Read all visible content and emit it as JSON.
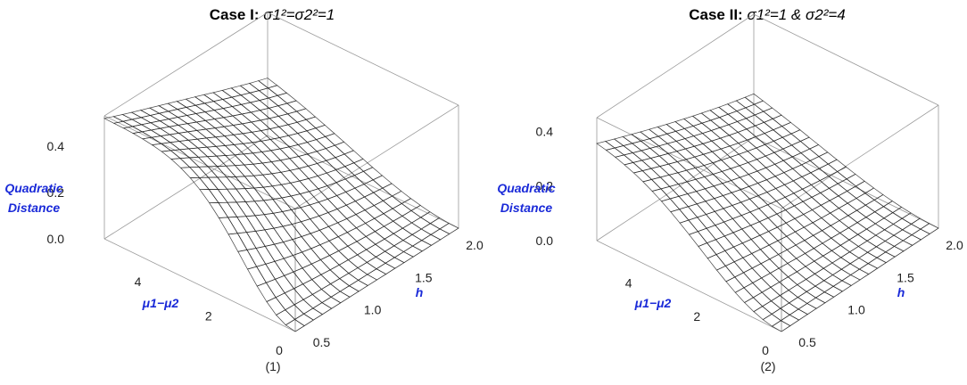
{
  "chart_data": [
    {
      "type": "surface",
      "panel_label": "(1)",
      "title_prefix": "Case I: ",
      "title_formula": "σ1²=σ2²=1",
      "x_axis": {
        "label": "μ1−μ2",
        "range": [
          0,
          5.4
        ],
        "ticks": [
          "0",
          "2",
          "4"
        ]
      },
      "y_axis": {
        "label": "h",
        "range": [
          0.4,
          2.0
        ],
        "ticks": [
          "0.5",
          "1.0",
          "1.5",
          "2.0"
        ]
      },
      "z_axis": {
        "label_line1": "Quadratic",
        "label_line2": "Distance",
        "range": [
          0,
          0.53
        ],
        "ticks": [
          "0.0",
          "0.2",
          "0.4"
        ]
      },
      "sigma2_sq": 1,
      "max_value": 0.52,
      "colormap": "rainbow"
    },
    {
      "type": "surface",
      "panel_label": "(2)",
      "title_prefix": "Case II: ",
      "title_formula": "σ1²=1 & σ2²=4",
      "x_axis": {
        "label": "μ1−μ2",
        "range": [
          0,
          5.4
        ],
        "ticks": [
          "0",
          "2",
          "4"
        ]
      },
      "y_axis": {
        "label": "h",
        "range": [
          0.4,
          2.0
        ],
        "ticks": [
          "0.5",
          "1.0",
          "1.5",
          "2.0"
        ]
      },
      "z_axis": {
        "label_line1": "Quadratic",
        "label_line2": "Distance",
        "range": [
          0,
          0.45
        ],
        "ticks": [
          "0.0",
          "0.2",
          "0.4"
        ]
      },
      "sigma2_sq": 4,
      "max_value": 0.38,
      "colormap": "rainbow"
    }
  ]
}
